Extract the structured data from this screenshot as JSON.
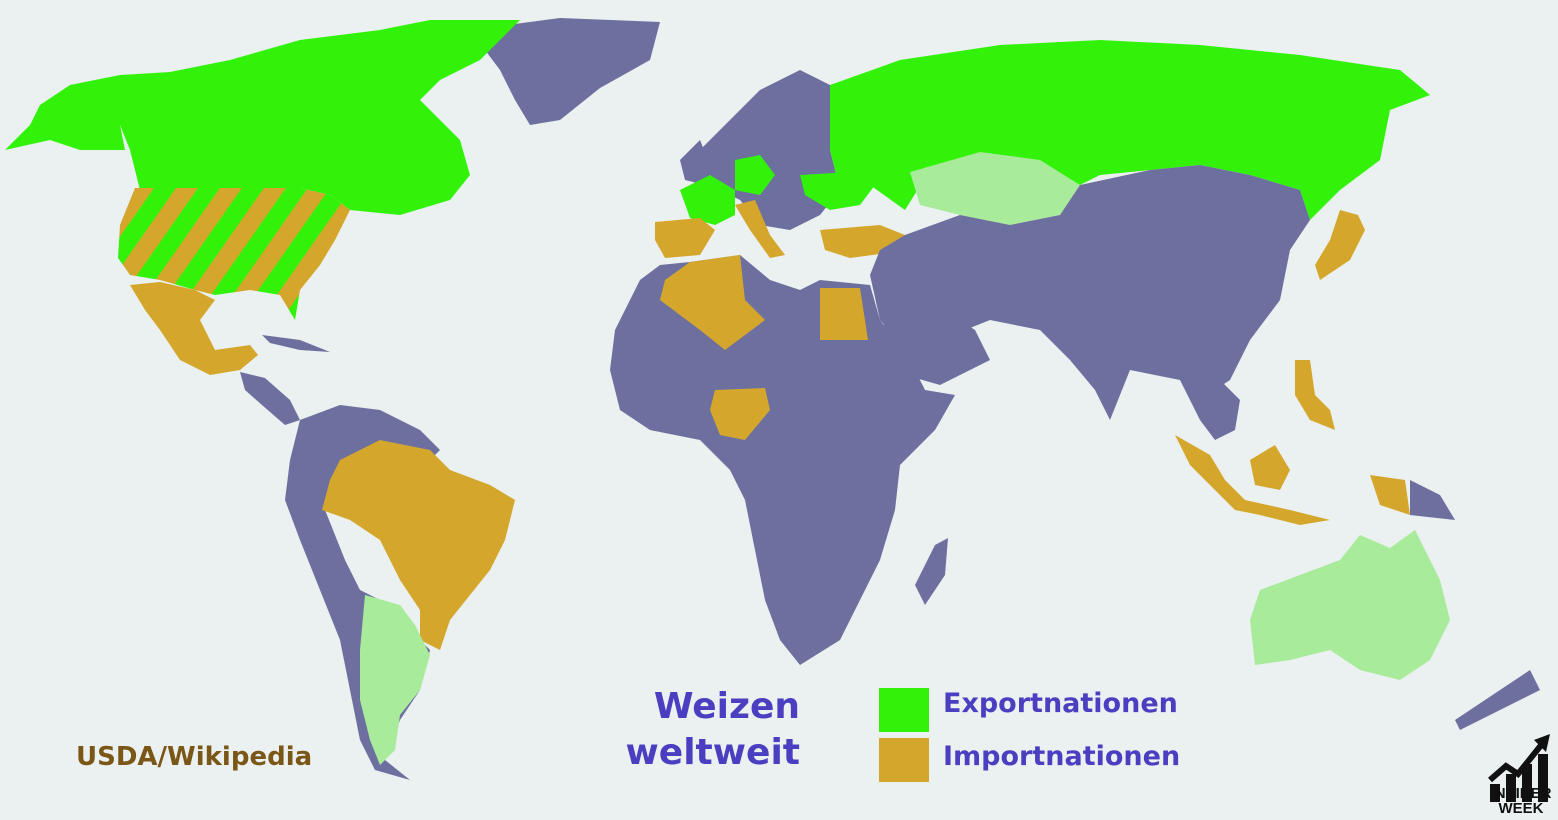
{
  "colors": {
    "background": "#ebf0f0",
    "other": "#6d6f9e",
    "exporter": "#33f20a",
    "importer": "#d4a72c",
    "minor_exporter": "#a8eb9a",
    "title": "#4a3fc1",
    "source": "#7a5716"
  },
  "title": {
    "line1": "Weizen",
    "line2": "weltweit"
  },
  "legend": [
    {
      "label": "Exportnationen",
      "color": "#33f20a"
    },
    {
      "label": "Importnationen",
      "color": "#d4a72c"
    }
  ],
  "source": "USDA/Wikipedia",
  "logo": {
    "line1": "INSIDER",
    "line2": "WEEK",
    "icon": "bar-chart-arrow-icon"
  },
  "regions": [
    {
      "name": "Canada",
      "category": "exporter"
    },
    {
      "name": "United States",
      "category": "exporter+importer"
    },
    {
      "name": "Mexico",
      "category": "importer"
    },
    {
      "name": "Brazil",
      "category": "importer"
    },
    {
      "name": "Argentina",
      "category": "minor_exporter"
    },
    {
      "name": "Russia",
      "category": "exporter"
    },
    {
      "name": "Kazakhstan",
      "category": "minor_exporter"
    },
    {
      "name": "France",
      "category": "exporter"
    },
    {
      "name": "Germany",
      "category": "exporter"
    },
    {
      "name": "Ukraine",
      "category": "exporter"
    },
    {
      "name": "Spain",
      "category": "importer"
    },
    {
      "name": "Italy",
      "category": "importer"
    },
    {
      "name": "Turkey",
      "category": "importer"
    },
    {
      "name": "Algeria",
      "category": "importer"
    },
    {
      "name": "Egypt",
      "category": "importer"
    },
    {
      "name": "Nigeria",
      "category": "importer"
    },
    {
      "name": "Japan",
      "category": "importer"
    },
    {
      "name": "Philippines",
      "category": "importer"
    },
    {
      "name": "Indonesia",
      "category": "importer"
    },
    {
      "name": "Australia",
      "category": "minor_exporter"
    }
  ]
}
